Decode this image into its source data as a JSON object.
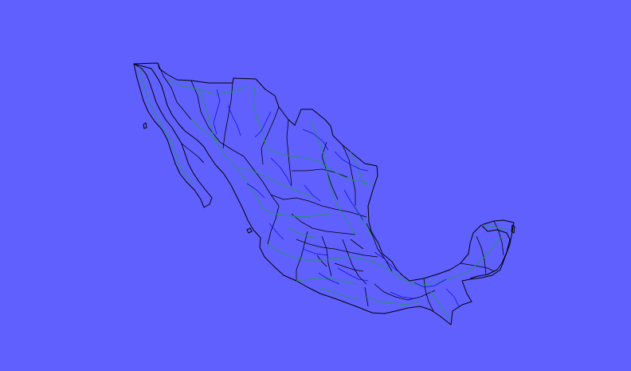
{
  "map": {
    "region": "Mexico",
    "colors": {
      "background": "#6060ff",
      "boundary": "#000000",
      "road": "#1f9a57",
      "river": "#1010e0"
    },
    "layers": [
      "coastline",
      "state-borders",
      "roads",
      "rivers"
    ]
  }
}
